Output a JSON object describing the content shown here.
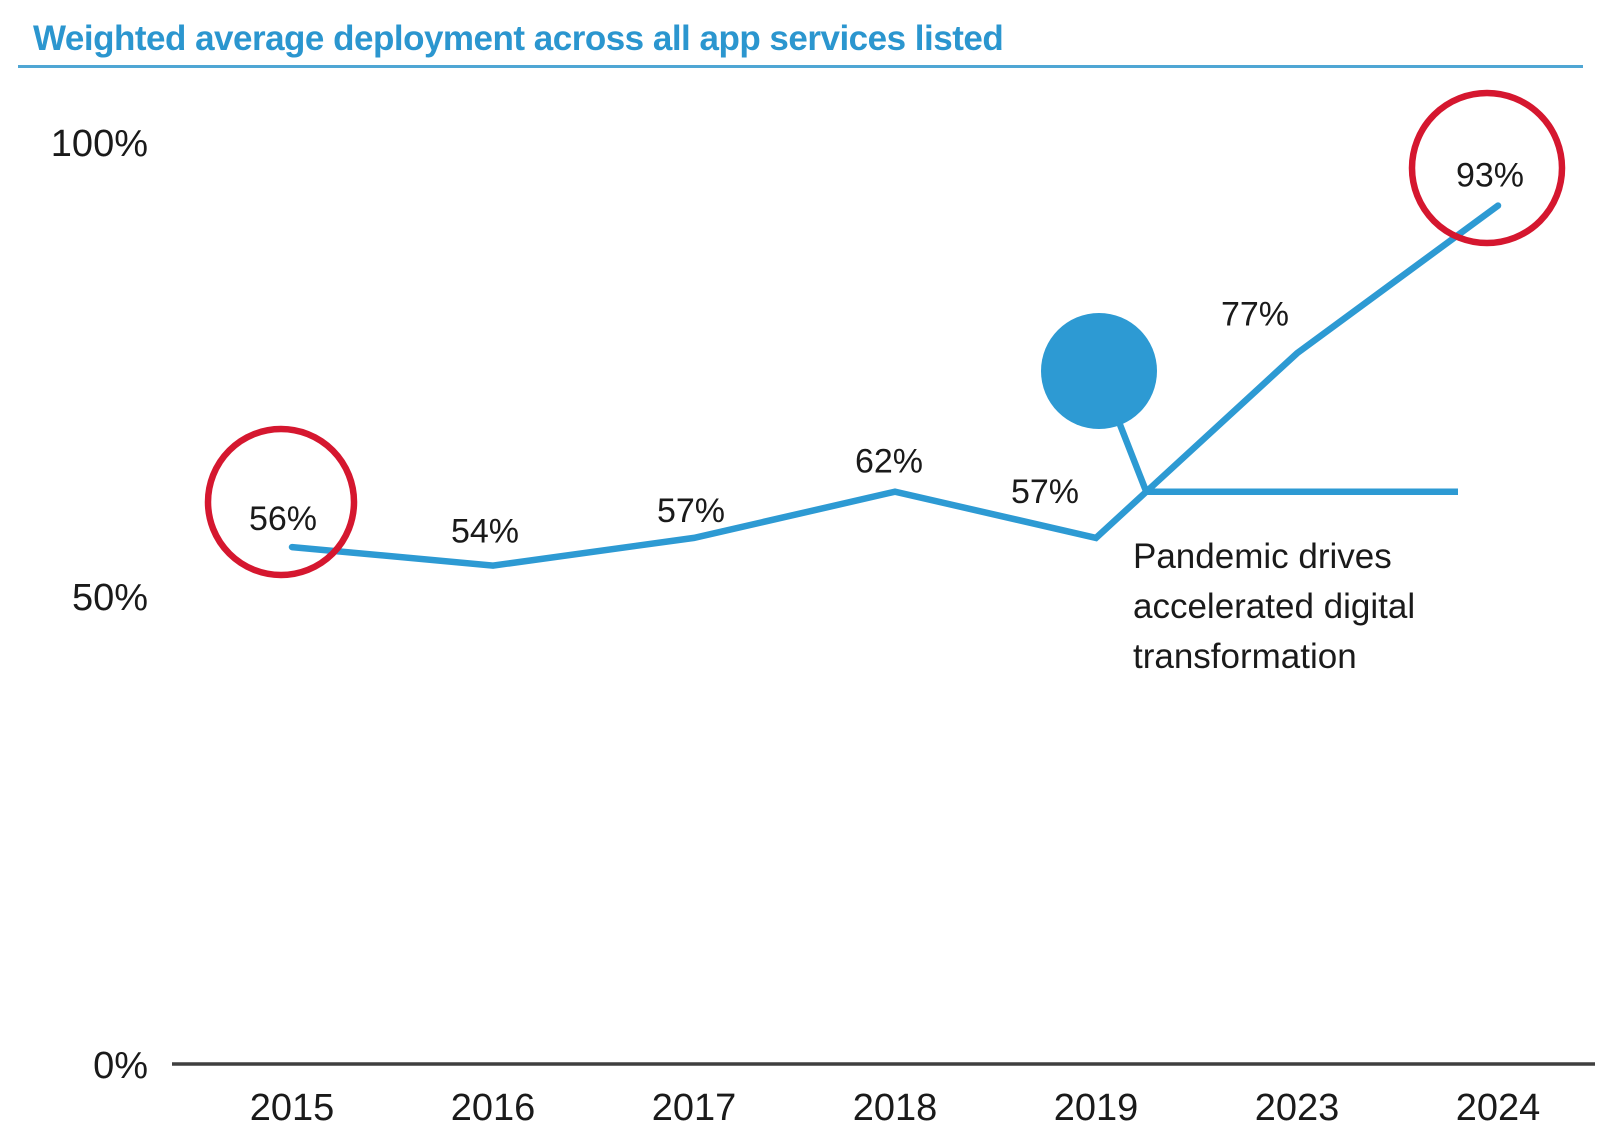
{
  "page": {
    "title": "Weighted average deployment across all app services listed"
  },
  "colors": {
    "accent_blue": "#2B96CF",
    "line_blue": "#2D9AD3",
    "annotation_red": "#D5172F",
    "axis_gray": "#3F3F3F",
    "text_dark": "#1A1A1A"
  },
  "chart_data": {
    "type": "line",
    "title": "Weighted average deployment across all app services listed",
    "categories": [
      "2015",
      "2016",
      "2017",
      "2018",
      "2019",
      "2023",
      "2024"
    ],
    "values": [
      56,
      54,
      57,
      62,
      57,
      77,
      93
    ],
    "value_labels": [
      "56%",
      "54%",
      "57%",
      "62%",
      "57%",
      "77%",
      "93%"
    ],
    "xlabel": "",
    "ylabel": "",
    "ylim": [
      0,
      100
    ],
    "grid": false,
    "legend": false,
    "y_ticks": [
      {
        "label": "100%",
        "value": 100
      },
      {
        "label": "50%",
        "value": 50
      },
      {
        "label": "0%",
        "value": 0
      }
    ],
    "circled_categories": [
      "2015",
      "2024"
    ],
    "reference_line": {
      "value": 62,
      "description": "flat horizontal line branching off where the post-2019 rise crosses the 62% level"
    },
    "annotation": {
      "marker": "filled-blue-circle-callout",
      "lines": [
        "Pandemic drives",
        "accelerated digital",
        "transformation"
      ]
    }
  }
}
